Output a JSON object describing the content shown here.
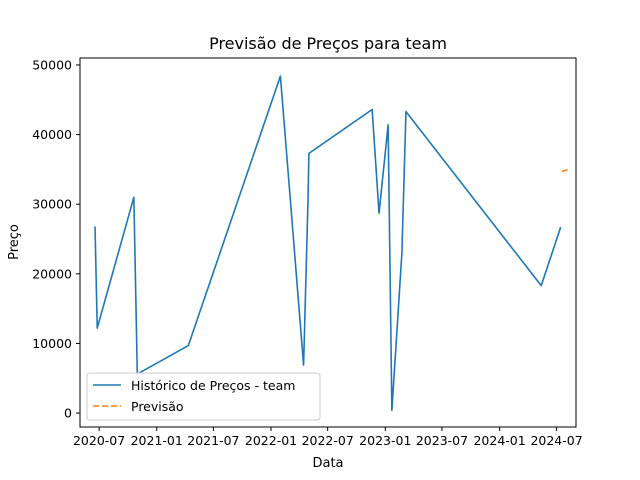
{
  "chart_data": {
    "type": "line",
    "title": "Previsão de Preços para team",
    "xlabel": "Data",
    "ylabel": "Preço",
    "xlim": [
      "2020-05-01",
      "2024-09-01"
    ],
    "ylim": [
      -2000,
      51000
    ],
    "x_ticks": [
      "2020-07",
      "2021-01",
      "2021-07",
      "2022-01",
      "2022-07",
      "2023-01",
      "2023-07",
      "2024-01",
      "2024-07"
    ],
    "y_ticks": [
      0,
      10000,
      20000,
      30000,
      40000,
      50000
    ],
    "grid": false,
    "legend_position": "lower-left",
    "series": [
      {
        "name": "Histórico de Preços - team",
        "color": "#1f77b4",
        "style": "solid",
        "points": [
          {
            "x": "2020-06-18",
            "y": 26800
          },
          {
            "x": "2020-06-25",
            "y": 12200
          },
          {
            "x": "2020-10-20",
            "y": 31000
          },
          {
            "x": "2020-10-31",
            "y": 5600
          },
          {
            "x": "2021-04-12",
            "y": 9700
          },
          {
            "x": "2022-01-31",
            "y": 48400
          },
          {
            "x": "2022-04-15",
            "y": 6900
          },
          {
            "x": "2022-04-29",
            "y": 30200
          },
          {
            "x": "2022-05-02",
            "y": 37300
          },
          {
            "x": "2022-11-20",
            "y": 43600
          },
          {
            "x": "2022-12-12",
            "y": 28700
          },
          {
            "x": "2023-01-10",
            "y": 41400
          },
          {
            "x": "2023-01-22",
            "y": 400
          },
          {
            "x": "2023-02-23",
            "y": 23000
          },
          {
            "x": "2023-03-08",
            "y": 43300
          },
          {
            "x": "2024-05-13",
            "y": 18300
          },
          {
            "x": "2024-07-14",
            "y": 26700
          }
        ]
      },
      {
        "name": "Previsão",
        "color": "#ff7f0e",
        "style": "dashed",
        "points": [
          {
            "x": "2024-07-18",
            "y": 34700
          },
          {
            "x": "2024-08-08",
            "y": 35000
          }
        ]
      }
    ]
  }
}
